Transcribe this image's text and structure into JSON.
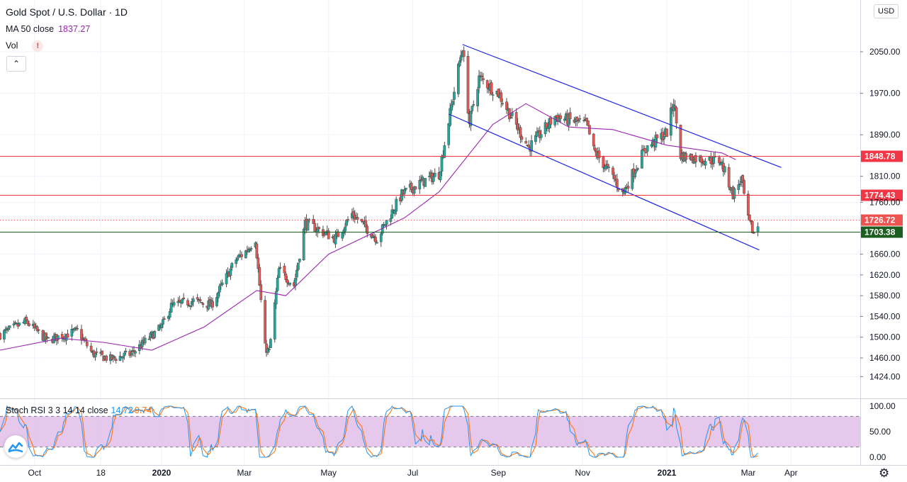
{
  "header": {
    "title": "Gold Spot / U.S. Dollar · 1D",
    "ma_label": "MA 50 close",
    "ma_value": "1837.27",
    "vol_label": "Vol",
    "vol_warning": "!",
    "collapse_glyph": "⌃"
  },
  "price_scale": {
    "currency_button": "USD"
  },
  "stoch_panel": {
    "label": "Stoch RSI 3 3 14 14 close",
    "k_value": "14.72",
    "d_value": "9.74"
  },
  "chart_data": {
    "type": "candlestick",
    "symbol": "Gold Spot / U.S. Dollar",
    "interval": "1D",
    "y_ticks": [
      "2050.00",
      "1970.00",
      "1890.00",
      "1810.00",
      "1760.00",
      "1660.00",
      "1620.00",
      "1580.00",
      "1540.00",
      "1500.00",
      "1460.00",
      "1424.00"
    ],
    "x_ticks": [
      {
        "label": "Oct",
        "date": "2019-10-01",
        "bold": false
      },
      {
        "label": "18",
        "date": "2019-11-18",
        "bold": false
      },
      {
        "label": "2020",
        "date": "2020-01-01",
        "bold": true
      },
      {
        "label": "Mar",
        "date": "2020-03-01",
        "bold": false
      },
      {
        "label": "May",
        "date": "2020-05-01",
        "bold": false
      },
      {
        "label": "Jul",
        "date": "2020-07-01",
        "bold": false
      },
      {
        "label": "Sep",
        "date": "2020-09-01",
        "bold": false
      },
      {
        "label": "Nov",
        "date": "2020-11-01",
        "bold": false
      },
      {
        "label": "2021",
        "date": "2021-01-01",
        "bold": true
      },
      {
        "label": "Mar",
        "date": "2021-03-01",
        "bold": false
      },
      {
        "label": "Apr",
        "date": "2021-04-01",
        "bold": false
      }
    ],
    "price_path": [
      [
        "2019-09-06",
        1505
      ],
      [
        "2019-09-25",
        1530
      ],
      [
        "2019-10-10",
        1494
      ],
      [
        "2019-11-01",
        1512
      ],
      [
        "2019-11-12",
        1468
      ],
      [
        "2019-11-25",
        1458
      ],
      [
        "2019-12-10",
        1468
      ],
      [
        "2020-01-01",
        1520
      ],
      [
        "2020-01-08",
        1560
      ],
      [
        "2020-01-24",
        1570
      ],
      [
        "2020-02-06",
        1562
      ],
      [
        "2020-02-24",
        1650
      ],
      [
        "2020-03-02",
        1665
      ],
      [
        "2020-03-09",
        1690
      ],
      [
        "2020-03-16",
        1480
      ],
      [
        "2020-03-19",
        1472
      ],
      [
        "2020-03-26",
        1630
      ],
      [
        "2020-04-06",
        1600
      ],
      [
        "2020-04-14",
        1720
      ],
      [
        "2020-05-06",
        1690
      ],
      [
        "2020-05-18",
        1738
      ],
      [
        "2020-06-05",
        1690
      ],
      [
        "2020-06-23",
        1775
      ],
      [
        "2020-07-08",
        1800
      ],
      [
        "2020-07-20",
        1815
      ],
      [
        "2020-07-30",
        1960
      ],
      [
        "2020-08-06",
        2060
      ],
      [
        "2020-08-11",
        1912
      ],
      [
        "2020-08-18",
        2000
      ],
      [
        "2020-09-01",
        1970
      ],
      [
        "2020-09-23",
        1865
      ],
      [
        "2020-10-12",
        1925
      ],
      [
        "2020-11-04",
        1910
      ],
      [
        "2020-11-09",
        1860
      ],
      [
        "2020-11-24",
        1805
      ],
      [
        "2020-11-30",
        1776
      ],
      [
        "2020-12-16",
        1862
      ],
      [
        "2021-01-01",
        1895
      ],
      [
        "2021-01-06",
        1955
      ],
      [
        "2021-01-11",
        1850
      ],
      [
        "2021-01-27",
        1843
      ],
      [
        "2021-02-09",
        1840
      ],
      [
        "2021-02-18",
        1775
      ],
      [
        "2021-02-24",
        1805
      ],
      [
        "2021-03-01",
        1725
      ],
      [
        "2021-03-05",
        1700
      ],
      [
        "2021-03-08",
        1715
      ]
    ],
    "ma50_path": [
      [
        "2019-09-06",
        1475
      ],
      [
        "2019-10-20",
        1498
      ],
      [
        "2019-11-20",
        1490
      ],
      [
        "2019-12-25",
        1475
      ],
      [
        "2020-02-01",
        1520
      ],
      [
        "2020-03-10",
        1590
      ],
      [
        "2020-03-31",
        1580
      ],
      [
        "2020-05-01",
        1660
      ],
      [
        "2020-06-25",
        1730
      ],
      [
        "2020-07-20",
        1780
      ],
      [
        "2020-08-28",
        1910
      ],
      [
        "2020-09-21",
        1950
      ],
      [
        "2020-10-22",
        1905
      ],
      [
        "2020-11-23",
        1900
      ],
      [
        "2021-01-01",
        1870
      ],
      [
        "2021-02-10",
        1855
      ],
      [
        "2021-02-20",
        1842
      ]
    ],
    "trend_channel": [
      {
        "from": [
          "2020-08-06",
          2064
        ],
        "to": [
          "2021-03-25",
          1827
        ]
      },
      {
        "from": [
          "2020-07-27",
          1930
        ],
        "to": [
          "2021-03-09",
          1668
        ]
      }
    ],
    "horizontal_levels": [
      {
        "price": 1848.78,
        "label": "1848.78",
        "color": "#f23645"
      },
      {
        "price": 1774.43,
        "label": "1774.43",
        "color": "#f23645"
      },
      {
        "price": 1726.72,
        "label": "1726.72",
        "color": "#ef5350",
        "dotted": true
      },
      {
        "price": 1703.38,
        "label": "1703.38",
        "color": "#1b5e20"
      }
    ],
    "y_axis_top_partial": "2",
    "colors": {
      "up": "#26a69a",
      "down": "#ef5350",
      "wick": "#4a4a4a",
      "ma": "#9c27b0",
      "channel": "#1e22e6"
    },
    "stoch_rsi": {
      "y_ticks": [
        "100.00",
        "50.00",
        "0.00"
      ],
      "bands": [
        80,
        20
      ],
      "k_color": "#2196f3",
      "d_color": "#ff6d00",
      "band_fill": "#e1bee7"
    }
  }
}
